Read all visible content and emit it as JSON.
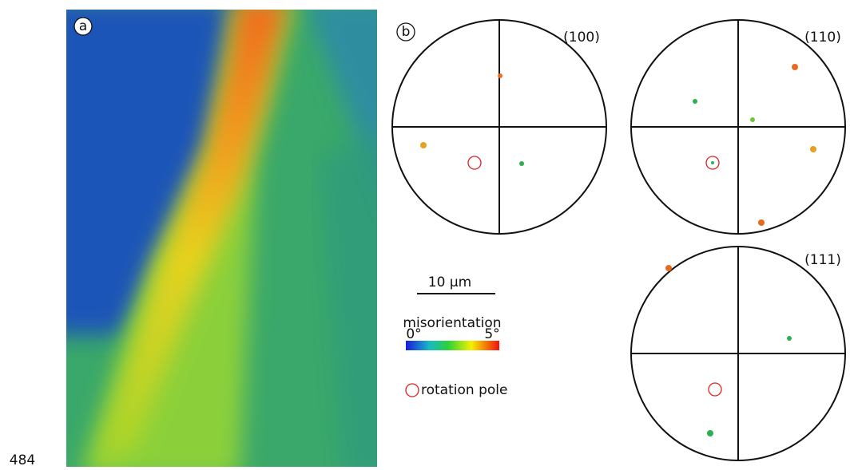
{
  "panel_a": {
    "label": "a"
  },
  "panel_b": {
    "label": "b",
    "pole_figures": [
      {
        "label": "(100)"
      },
      {
        "label": "(110)"
      },
      {
        "label": "(111)"
      }
    ],
    "scale_bar": "10 μm",
    "legend": {
      "title": "misorientation",
      "min": "0°",
      "max": "5°",
      "rotation_pole": "rotation pole"
    }
  },
  "page_number": "484"
}
